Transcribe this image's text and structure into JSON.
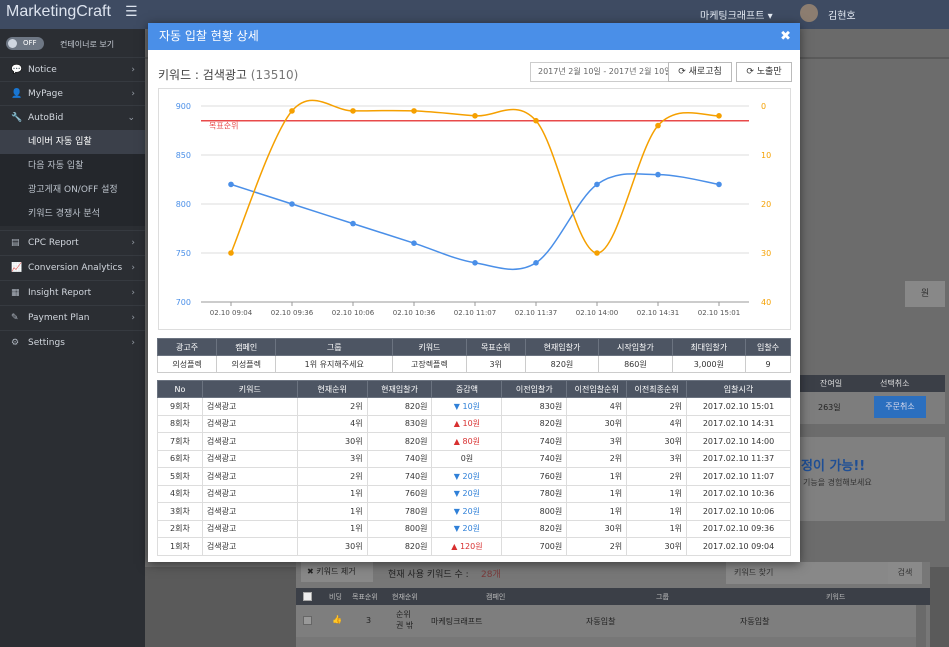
{
  "header": {
    "brand": "MarketingCraft",
    "menu_icon": "hamburger-icon",
    "company": "마케팅크래프트 ▾",
    "user": "김현호"
  },
  "sidebar": {
    "toggle_state": "OFF",
    "toggle_label": "컨테이너로 보기",
    "items": [
      {
        "label": "Notice",
        "icon": "chat-icon"
      },
      {
        "label": "MyPage",
        "icon": "user-icon"
      },
      {
        "label": "AutoBid",
        "icon": "wrench-icon"
      }
    ],
    "subitems": [
      "네이버 자동 입찰",
      "다음 자동 입찰",
      "광고게재 ON/OFF 설정",
      "키워드 경쟁사 분석"
    ],
    "items2": [
      {
        "label": "CPC Report",
        "icon": "report-icon"
      },
      {
        "label": "Conversion Analytics",
        "icon": "chart-icon"
      },
      {
        "label": "Insight Report",
        "icon": "doc-icon"
      },
      {
        "label": "Payment Plan",
        "icon": "tag-icon"
      },
      {
        "label": "Settings",
        "icon": "gear-icon"
      }
    ]
  },
  "background": {
    "won": "원",
    "remaining_header": "잔여일",
    "cancel_header": "선택취소",
    "remaining": "263일",
    "cancel_btn": "주문취소",
    "promo": "정이 가능!!",
    "promo_sub": "기능을 경험해보세요",
    "remove_kw": "키워드 제거",
    "current_kw": "현재 사용 키워드 수 :",
    "kw_count": "28개",
    "kw_search": "키워드 찾기",
    "search_btn": "검색",
    "cols": [
      "비딩",
      "목표순위",
      "현재순위",
      "캠페인",
      "그룹",
      "키워드"
    ],
    "row": {
      "target": "3",
      "current": "순위권 밖",
      "campaign": "마케팅크래프트",
      "group": "자동입찰",
      "keyword": "자동입찰"
    }
  },
  "modal": {
    "title": "자동 입찰 현황 상세",
    "close_icon": "close-icon",
    "keyword_label": "키워드 : 검색광고",
    "keyword_id": "(13510)",
    "date_range": "2017년 2월 10일 - 2017년 2월 10일",
    "refresh_btn": "새로고침",
    "exposure_btn": "노출만"
  },
  "chart_data": {
    "type": "line",
    "x": [
      "02.10 09:04",
      "02.10 09:36",
      "02.10 10:06",
      "02.10 10:36",
      "02.10 11:07",
      "02.10 11:37",
      "02.10 14:00",
      "02.10 14:31",
      "02.10 15:01"
    ],
    "left_axis": {
      "ylim": [
        700,
        900
      ],
      "ticks": [
        900,
        850,
        800,
        750,
        700
      ]
    },
    "right_axis": {
      "ylim": [
        0,
        40
      ],
      "ticks": [
        0,
        10,
        20,
        30,
        40
      ],
      "inverted": true
    },
    "series": [
      {
        "name": "",
        "axis": "left",
        "color": "#4a8fe8",
        "values": [
          820,
          800,
          780,
          760,
          740,
          740,
          820,
          830,
          820
        ]
      },
      {
        "name": "",
        "axis": "right",
        "color": "#f5a000",
        "values": [
          30,
          1,
          1,
          1,
          2,
          3,
          30,
          4,
          2
        ]
      }
    ],
    "target_line": {
      "label": "목표순위",
      "value": 3,
      "axis": "right",
      "color": "#e84a4a"
    }
  },
  "summary": {
    "headers": [
      "광고주",
      "캠페인",
      "그룹",
      "키워드",
      "목표순위",
      "현재입찰가",
      "시작입찰가",
      "최대입찰가",
      "입찰수"
    ],
    "row": [
      "의성플렉",
      "의성플렉",
      "1위 유지해주세요",
      "고장렉플렉",
      "3위",
      "820원",
      "860원",
      "3,000원",
      "9"
    ]
  },
  "history": {
    "headers": [
      "No",
      "키워드",
      "현재순위",
      "현재입찰가",
      "증감액",
      "이전입찰가",
      "이전입찰순위",
      "이전최종순위",
      "입찰시각"
    ],
    "rows": [
      {
        "no": "9회차",
        "kw": "검색광고",
        "rank": "2위",
        "bid": "820원",
        "diff": "10원",
        "dir": "down",
        "prev_bid": "830원",
        "prev_rank": "4위",
        "prev_final": "2위",
        "time": "2017.02.10 15:01"
      },
      {
        "no": "8회차",
        "kw": "검색광고",
        "rank": "4위",
        "bid": "830원",
        "diff": "10원",
        "dir": "up",
        "prev_bid": "820원",
        "prev_rank": "30위",
        "prev_final": "4위",
        "time": "2017.02.10 14:31"
      },
      {
        "no": "7회차",
        "kw": "검색광고",
        "rank": "30위",
        "bid": "820원",
        "diff": "80원",
        "dir": "up",
        "prev_bid": "740원",
        "prev_rank": "3위",
        "prev_final": "30위",
        "time": "2017.02.10 14:00"
      },
      {
        "no": "6회차",
        "kw": "검색광고",
        "rank": "3위",
        "bid": "740원",
        "diff": "0원",
        "dir": "",
        "prev_bid": "740원",
        "prev_rank": "2위",
        "prev_final": "3위",
        "time": "2017.02.10 11:37"
      },
      {
        "no": "5회차",
        "kw": "검색광고",
        "rank": "2위",
        "bid": "740원",
        "diff": "20원",
        "dir": "down",
        "prev_bid": "760원",
        "prev_rank": "1위",
        "prev_final": "2위",
        "time": "2017.02.10 11:07"
      },
      {
        "no": "4회차",
        "kw": "검색광고",
        "rank": "1위",
        "bid": "760원",
        "diff": "20원",
        "dir": "down",
        "prev_bid": "780원",
        "prev_rank": "1위",
        "prev_final": "1위",
        "time": "2017.02.10 10:36"
      },
      {
        "no": "3회차",
        "kw": "검색광고",
        "rank": "1위",
        "bid": "780원",
        "diff": "20원",
        "dir": "down",
        "prev_bid": "800원",
        "prev_rank": "1위",
        "prev_final": "1위",
        "time": "2017.02.10 10:06"
      },
      {
        "no": "2회차",
        "kw": "검색광고",
        "rank": "1위",
        "bid": "800원",
        "diff": "20원",
        "dir": "down",
        "prev_bid": "820원",
        "prev_rank": "30위",
        "prev_final": "1위",
        "time": "2017.02.10 09:36"
      },
      {
        "no": "1회차",
        "kw": "검색광고",
        "rank": "30위",
        "bid": "820원",
        "diff": "120원",
        "dir": "up",
        "prev_bid": "700원",
        "prev_rank": "2위",
        "prev_final": "30위",
        "time": "2017.02.10 09:04"
      }
    ]
  }
}
